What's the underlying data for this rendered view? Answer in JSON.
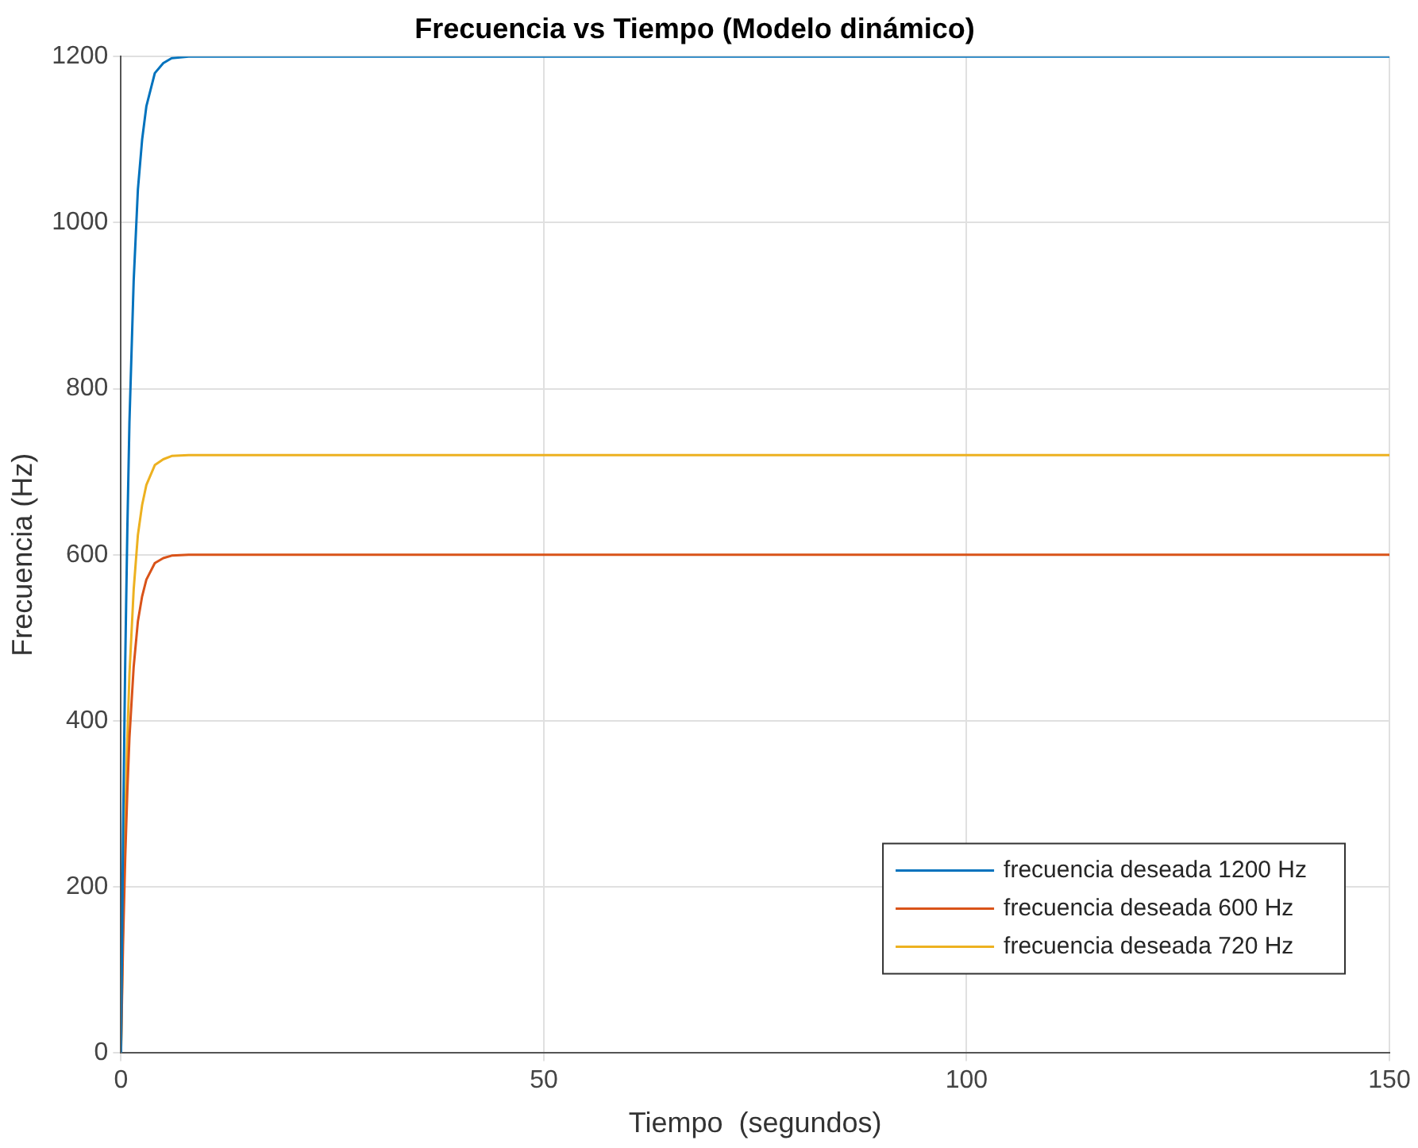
{
  "chart_data": {
    "type": "line",
    "title": "Frecuencia vs Tiempo (Modelo dinámico)",
    "xlabel": "Tiempo  (segundos)",
    "ylabel": "Frecuencia (Hz)",
    "x": [
      0,
      0.25,
      0.5,
      0.75,
      1,
      1.5,
      2,
      2.5,
      3,
      4,
      5,
      6,
      8,
      150
    ],
    "series": [
      {
        "name": "frecuencia deseada 1200 Hz",
        "color": "#0072bd",
        "values": [
          0,
          270,
          470,
          630,
          760,
          930,
          1040,
          1100,
          1140,
          1180,
          1192,
          1198,
          1200,
          1200
        ]
      },
      {
        "name": "frecuencia deseada 600 Hz",
        "color": "#d95319",
        "values": [
          0,
          135,
          235,
          315,
          380,
          465,
          520,
          550,
          570,
          590,
          596,
          599,
          600,
          600
        ]
      },
      {
        "name": "frecuencia deseada 720 Hz",
        "color": "#edb120",
        "values": [
          0,
          162,
          282,
          378,
          456,
          558,
          624,
          660,
          684,
          708,
          715,
          719,
          720,
          720
        ]
      }
    ],
    "xlim": [
      0,
      150
    ],
    "xticks": [
      0,
      50,
      100,
      150
    ],
    "ylim": [
      0,
      1200
    ],
    "yticks": [
      0,
      200,
      400,
      600,
      800,
      1000,
      1200
    ],
    "grid": true,
    "legend": "bottom right",
    "marker": "none",
    "line_style": "solid"
  }
}
